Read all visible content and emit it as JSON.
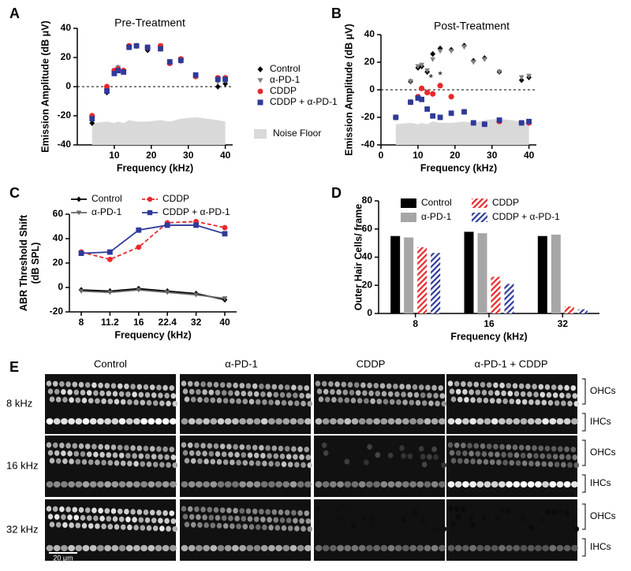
{
  "chart_data": [
    {
      "type": "scatter",
      "panel_label": "A",
      "title": "Pre-Treatment",
      "y_label": [
        "Emission Amplitude (dB μV)"
      ],
      "x_label": "Frequency (kHz)",
      "xlim": [
        0,
        42
      ],
      "xticks": [
        10,
        20,
        30,
        40
      ],
      "ylim": [
        -40,
        40
      ],
      "yticks": [
        -40,
        -20,
        0,
        20,
        40
      ],
      "reference_line": 0,
      "legend": "right",
      "x": [
        4,
        8,
        10,
        11,
        12.5,
        14,
        16,
        19,
        22.5,
        25,
        28,
        32,
        38,
        40
      ],
      "series": [
        {
          "name": "Control",
          "color": "#000000",
          "marker": "diamond",
          "values": [
            -25,
            -4,
            10,
            13,
            11,
            27,
            28,
            25,
            26,
            17,
            18,
            7,
            0,
            2
          ]
        },
        {
          "name": "α-PD-1",
          "color": "#808080",
          "marker": "triangle-down",
          "values": [
            -22,
            -3,
            11,
            13,
            10,
            27,
            28,
            26,
            27,
            17,
            17,
            8,
            3,
            4
          ]
        },
        {
          "name": "CDDP",
          "color": "#e8292b",
          "marker": "circle",
          "values": [
            -20,
            0,
            11,
            12,
            11,
            28,
            28,
            27,
            28,
            16,
            19,
            7,
            6,
            6
          ]
        },
        {
          "name": "CDDP + α-PD-1",
          "color": "#2e3a9a",
          "marker": "square",
          "values": [
            -22,
            -3,
            9,
            11,
            10,
            27,
            28,
            27,
            26,
            17,
            18,
            8,
            5,
            5
          ]
        }
      ],
      "noise_floor": {
        "name": "Noise Floor",
        "color": "#d9d9d9",
        "values": [
          -25,
          -24,
          -25,
          -24,
          -25,
          -23,
          -24,
          -24,
          -23,
          -24,
          -22,
          -21,
          -23,
          -24
        ]
      }
    },
    {
      "type": "scatter",
      "panel_label": "B",
      "title": "Post-Treatment",
      "y_label": [
        "Emission Amplitude (dB μV)"
      ],
      "x_label": "Frequency (kHz)",
      "xlim": [
        0,
        42
      ],
      "xticks": [
        0,
        10,
        20,
        30,
        40
      ],
      "ylim": [
        -40,
        40
      ],
      "yticks": [
        -40,
        -20,
        0,
        20,
        40
      ],
      "reference_line": 0,
      "x": [
        4,
        8,
        10,
        11,
        12.5,
        14,
        16,
        19,
        22.5,
        25,
        28,
        32,
        38,
        40
      ],
      "series": [
        {
          "name": "Control",
          "color": "#000000",
          "marker": "diamond",
          "values": [
            -20,
            6,
            16,
            17,
            13,
            26,
            30,
            29,
            32,
            21,
            23,
            13,
            7,
            9
          ]
        },
        {
          "name": "α-PD-1",
          "color": "#808080",
          "marker": "triangle-down",
          "values": [
            -20,
            6,
            17,
            18,
            14,
            22,
            28,
            28,
            31,
            20,
            22,
            13,
            9,
            10
          ]
        },
        {
          "name": "CDDP",
          "color": "#e8292b",
          "marker": "circle",
          "values": [
            -20,
            -9,
            -5,
            1,
            -2,
            -3,
            3,
            -5,
            -16,
            -24,
            -25,
            -23,
            -24,
            -24
          ]
        },
        {
          "name": "CDDP + α-PD-1",
          "color": "#2e3a9a",
          "marker": "square",
          "values": [
            -20,
            -9,
            -6,
            -7,
            -14,
            -19,
            -20,
            -17,
            -16,
            -24,
            -25,
            -22,
            -24,
            -23
          ]
        }
      ],
      "noise_floor": {
        "name": "Noise Floor",
        "color": "#d9d9d9",
        "values": [
          -25,
          -24,
          -25,
          -24,
          -25,
          -23,
          -24,
          -24,
          -23,
          -24,
          -22,
          -21,
          -23,
          -24
        ]
      },
      "annotations": [
        {
          "text": "*",
          "x": 13.5,
          "y": 8
        },
        {
          "text": "*",
          "x": 16,
          "y": 10
        }
      ]
    },
    {
      "type": "line",
      "panel_label": "C",
      "y_label": [
        "ABR Threshold Shift",
        "(dB SPL)"
      ],
      "x_label": "Frequency (kHz)",
      "categories": [
        "8",
        "11.2",
        "16",
        "22.4",
        "32",
        "40"
      ],
      "ylim": [
        -20,
        60
      ],
      "yticks": [
        -20,
        0,
        20,
        40,
        60
      ],
      "legend": "top",
      "series": [
        {
          "name": "Control",
          "color": "#000000",
          "marker": "diamond",
          "dashed": false,
          "values": [
            -2,
            -3,
            -1,
            -3,
            -5,
            -10
          ]
        },
        {
          "name": "α-PD-1",
          "color": "#666666",
          "marker": "triangle-down",
          "dashed": false,
          "values": [
            -3,
            -4,
            -2,
            -4,
            -6,
            -9
          ]
        },
        {
          "name": "CDDP",
          "color": "#e8292b",
          "marker": "circle",
          "dashed": true,
          "values": [
            29,
            23,
            33,
            53,
            54,
            49
          ]
        },
        {
          "name": "CDDP + α-PD-1",
          "color": "#2e3a9a",
          "marker": "square",
          "dashed": false,
          "values": [
            28,
            29,
            47,
            51,
            51,
            44
          ]
        }
      ]
    },
    {
      "type": "bar",
      "panel_label": "D",
      "y_label": [
        "Outer Hair Cells/ frame"
      ],
      "x_label": "Frequency (kHz)",
      "categories": [
        "8",
        "16",
        "32"
      ],
      "ylim": [
        0,
        80
      ],
      "yticks": [
        0,
        20,
        40,
        60,
        80
      ],
      "legend": "top",
      "series": [
        {
          "name": "Control",
          "color": "#000000",
          "hatch": false,
          "values": [
            55,
            58,
            55
          ]
        },
        {
          "name": "α-PD-1",
          "color": "#a6a6a6",
          "hatch": false,
          "values": [
            54,
            57,
            56
          ]
        },
        {
          "name": "CDDP",
          "color": "#e8292b",
          "hatch": true,
          "values": [
            47,
            26,
            5
          ]
        },
        {
          "name": "CDDP + α-PD-1",
          "color": "#2e3a9a",
          "hatch": true,
          "values": [
            43,
            21,
            3
          ]
        }
      ]
    }
  ],
  "panel_e": {
    "panel_label": "E",
    "columns": [
      "Control",
      "α-PD-1",
      "CDDP",
      "α-PD-1 + CDDP"
    ],
    "rows": [
      "8 kHz",
      "16 kHz",
      "32 kHz"
    ],
    "right_labels": [
      "OHCs",
      "IHCs"
    ],
    "scale_bar": "20 μm"
  }
}
